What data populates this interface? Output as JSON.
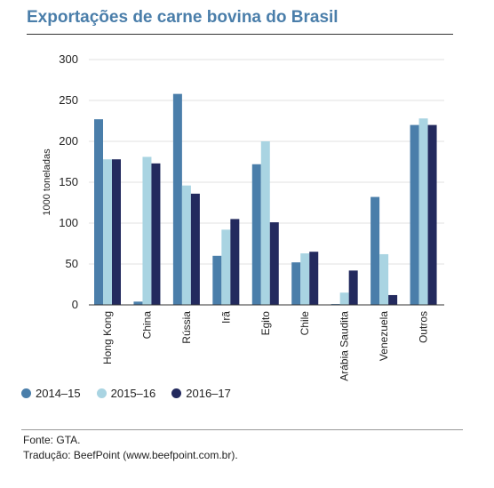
{
  "title": "Exportações de carne bovina do Brasil",
  "source": "Fonte: GTA.",
  "translation": "Tradução: BeefPoint (www.beefpoint.com.br).",
  "chart_data": {
    "type": "bar",
    "title": "Exportações de carne bovina do Brasil",
    "xlabel": "",
    "ylabel": "1000 toneladas",
    "ylim": [
      0,
      300
    ],
    "yticks": [
      0,
      50,
      100,
      150,
      200,
      250,
      300
    ],
    "grid": true,
    "legend_position": "bottom-left",
    "categories": [
      "Hong Kong",
      "China",
      "Rússia",
      "Irã",
      "Egito",
      "Chile",
      "Arábia Saudita",
      "Venezuela",
      "Outros"
    ],
    "series": [
      {
        "name": "2014–15",
        "color": "#4a7eaa",
        "values": [
          227,
          4,
          258,
          60,
          172,
          52,
          1,
          132,
          220
        ]
      },
      {
        "name": "2015–16",
        "color": "#a9d4e2",
        "values": [
          178,
          181,
          146,
          92,
          200,
          63,
          15,
          62,
          228
        ]
      },
      {
        "name": "2016–17",
        "color": "#232a5e",
        "values": [
          178,
          173,
          136,
          105,
          101,
          65,
          42,
          12,
          220
        ]
      }
    ]
  }
}
